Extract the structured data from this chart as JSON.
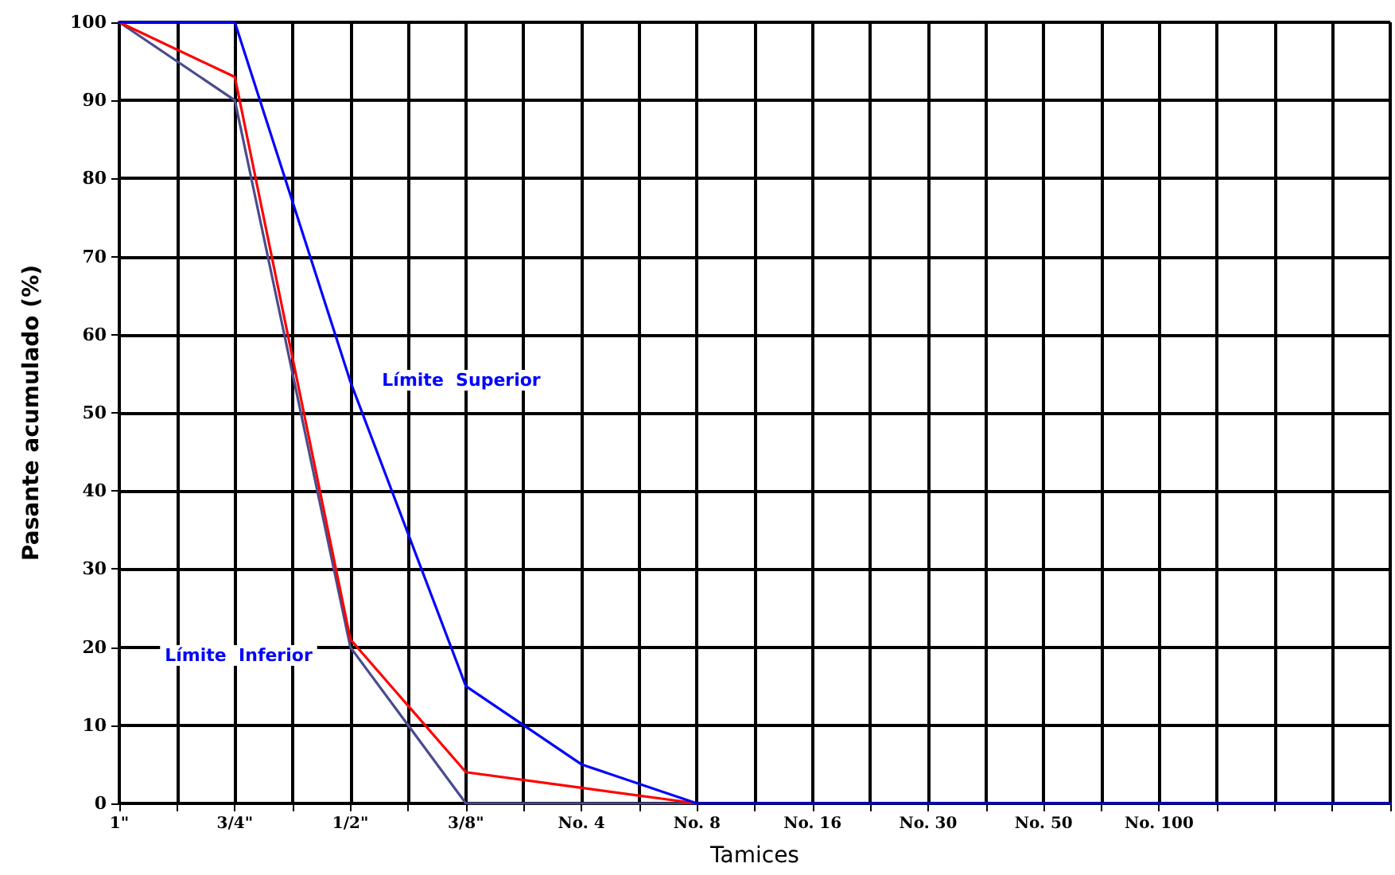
{
  "chart_data": {
    "type": "line",
    "xlabel": "Tamices",
    "ylabel": "Pasante acumulado (%)",
    "categories": [
      "1\"",
      null,
      "3/4\"",
      null,
      "1/2\"",
      null,
      "3/8\"",
      null,
      "No. 4",
      null,
      "No. 8",
      null,
      "No. 16",
      null,
      "No. 30",
      null,
      "No. 50",
      null,
      "No. 100",
      null,
      null,
      null,
      null
    ],
    "ylim": [
      0,
      100
    ],
    "yticks": [
      0,
      10,
      20,
      30,
      40,
      50,
      60,
      70,
      80,
      90,
      100
    ],
    "grid": true,
    "marker": "none",
    "line_style": "solid",
    "series": [
      {
        "color": "#4b4b8c",
        "values": [
          100,
          null,
          90,
          null,
          20,
          null,
          0,
          null,
          0,
          null,
          0,
          null,
          null,
          null,
          null,
          null,
          null,
          null,
          null,
          null,
          null,
          null,
          null
        ]
      },
      {
        "color": "#ff0000",
        "values": [
          100,
          null,
          93,
          null,
          21,
          null,
          4,
          null,
          2,
          null,
          0,
          null,
          null,
          null,
          null,
          null,
          null,
          null,
          null,
          null,
          null,
          null,
          null
        ]
      },
      {
        "color": "#0000ff",
        "values": [
          100,
          null,
          100,
          null,
          54,
          null,
          15,
          null,
          5,
          null,
          0,
          null,
          0,
          null,
          0,
          null,
          0,
          null,
          0,
          null,
          0,
          null,
          0
        ]
      }
    ],
    "annotations": [
      "Límite  Superior",
      "Límite  Inferior"
    ]
  }
}
